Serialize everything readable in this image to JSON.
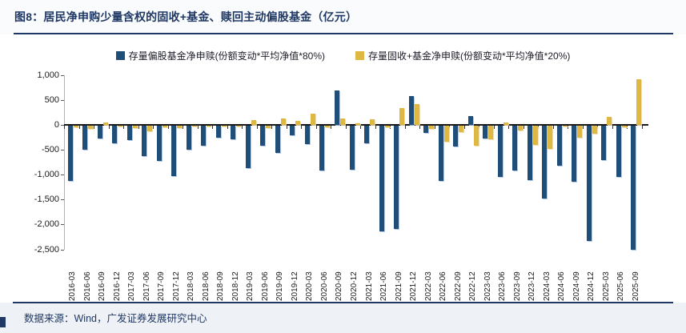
{
  "page": {
    "title": "图8：居民净申购少量含权的固收+基金、赎回主动偏股基金（亿元）",
    "footer": "数据来源：Wind，广发证券发展研究中心"
  },
  "colors": {
    "equity_series": "#1F4E79",
    "fixed_income_series": "#DFB844",
    "title_text": "#1F3864",
    "axis_line": "#1a1a1a"
  },
  "chart_data": {
    "type": "bar",
    "title": "居民净申购少量含权的固收+基金、赎回主动偏股基金（亿元）",
    "categories": [
      "2016-03",
      "2016-06",
      "2016-09",
      "2016-12",
      "2017-03",
      "2017-06",
      "2017-09",
      "2017-12",
      "2018-03",
      "2018-06",
      "2018-09",
      "2018-12",
      "2019-03",
      "2019-06",
      "2019-09",
      "2019-12",
      "2020-03",
      "2020-06",
      "2020-09",
      "2020-12",
      "2021-03",
      "2021-06",
      "2021-09",
      "2021-12",
      "2022-03",
      "2022-06",
      "2022-09",
      "2022-12",
      "2023-03",
      "2023-06",
      "2023-09",
      "2023-12",
      "2024-03",
      "2024-06",
      "2024-09",
      "2024-12",
      "2025-03",
      "2025-06",
      "2025-09"
    ],
    "series": [
      {
        "name": "存量偏股基金净申赎(份额变动*平均净值*80%)",
        "color": "#1F4E79",
        "values": [
          -1110,
          -480,
          -260,
          -360,
          -290,
          -620,
          -710,
          -1010,
          -480,
          -410,
          -240,
          -270,
          -860,
          -400,
          -550,
          -200,
          -380,
          -900,
          690,
          -880,
          -350,
          -2120,
          -2070,
          580,
          -155,
          -1105,
          -420,
          170,
          -260,
          -1030,
          -900,
          -1090,
          -1460,
          -810,
          -1120,
          -2310,
          -700,
          -1030,
          -2500
        ]
      },
      {
        "name": "存量固收+基金净申赎(份额变动*平均净值*20%)",
        "color": "#DFB844",
        "values": [
          -30,
          -75,
          45,
          -15,
          -50,
          -120,
          -40,
          -50,
          -20,
          -15,
          -25,
          -20,
          85,
          -45,
          125,
          75,
          215,
          -30,
          120,
          30,
          110,
          -30,
          330,
          410,
          -70,
          -320,
          -130,
          -410,
          -275,
          50,
          -100,
          -385,
          -470,
          -20,
          -250,
          -160,
          150,
          -30,
          910
        ]
      }
    ],
    "ylim": [
      -2500,
      1000
    ],
    "yticks": [
      1000,
      500,
      0,
      -500,
      -1000,
      -1500,
      -2000,
      -2500
    ],
    "ytick_labels": [
      "1,000",
      "500",
      "0",
      "-500",
      "-1,000",
      "-1,500",
      "-2,000",
      "-2,500"
    ],
    "xlabel": "",
    "ylabel": "",
    "grid": false,
    "legend_position": "top"
  }
}
